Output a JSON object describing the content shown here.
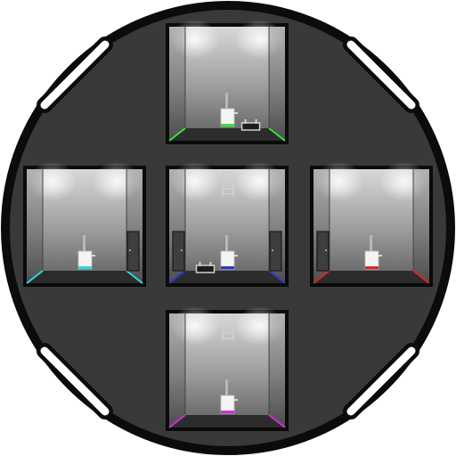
{
  "level": {
    "background": "#ffffff",
    "hub_fill": "#393939",
    "hub_border": "#0b0b0b",
    "portal_color": "#ffffff",
    "room_frame": "#0a0a0a",
    "room_wall_top": "#d6d6d6",
    "room_wall_bottom": "#6a6a6a",
    "floor_color": "#2c2c2c"
  },
  "portals": [
    {
      "id": "portal-top-left"
    },
    {
      "id": "portal-top-right"
    },
    {
      "id": "portal-bottom-left"
    },
    {
      "id": "portal-bottom-right"
    }
  ],
  "rooms": [
    {
      "id": "room-north",
      "accent": "#36e23a",
      "has_ladder": false,
      "has_trapdoor": true,
      "door_left": false,
      "door_right": false
    },
    {
      "id": "room-west",
      "accent": "#2ad8e0",
      "has_ladder": false,
      "has_trapdoor": false,
      "door_left": false,
      "door_right": true
    },
    {
      "id": "room-center",
      "accent": "#2a36d6",
      "has_ladder": true,
      "has_trapdoor": true,
      "door_left": true,
      "door_right": true
    },
    {
      "id": "room-east",
      "accent": "#e02424",
      "has_ladder": false,
      "has_trapdoor": false,
      "door_left": true,
      "door_right": false
    },
    {
      "id": "room-south",
      "accent": "#d62ad6",
      "has_ladder": true,
      "has_trapdoor": false,
      "door_left": false,
      "door_right": false
    }
  ]
}
